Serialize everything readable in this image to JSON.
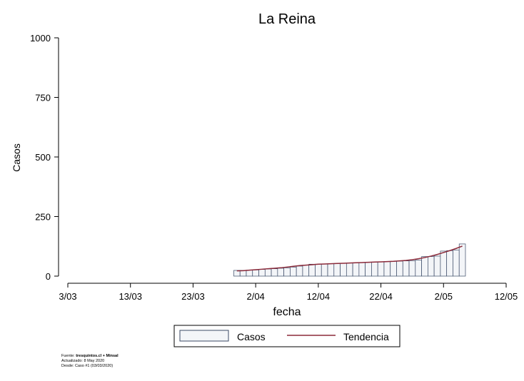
{
  "chart_data": {
    "type": "bar",
    "title": "La Reina",
    "xlabel": "fecha",
    "ylabel": "Casos",
    "ylim": [
      0,
      1000
    ],
    "yticks": [
      0,
      250,
      500,
      750,
      1000
    ],
    "xlim": [
      0,
      70
    ],
    "xticks": [
      {
        "day": 0,
        "label": "3/03"
      },
      {
        "day": 10,
        "label": "13/03"
      },
      {
        "day": 20,
        "label": "23/03"
      },
      {
        "day": 30,
        "label": "2/04"
      },
      {
        "day": 40,
        "label": "12/04"
      },
      {
        "day": 50,
        "label": "22/04"
      },
      {
        "day": 60,
        "label": "2/05"
      },
      {
        "day": 70,
        "label": "12/05"
      }
    ],
    "x_days": [
      27,
      28,
      29,
      30,
      31,
      32,
      33,
      34,
      35,
      36,
      37,
      38,
      39,
      40,
      41,
      42,
      43,
      44,
      45,
      46,
      47,
      48,
      49,
      50,
      51,
      52,
      53,
      54,
      55,
      56,
      57,
      58,
      59,
      60,
      61,
      62,
      63
    ],
    "series": [
      {
        "name": "Casos",
        "kind": "bar",
        "values": [
          24,
          24,
          25,
          26,
          28,
          30,
          31,
          33,
          35,
          38,
          42,
          46,
          50,
          50,
          51,
          52,
          53,
          54,
          55,
          56,
          57,
          58,
          59,
          60,
          61,
          62,
          63,
          64,
          65,
          67,
          82,
          82,
          84,
          105,
          107,
          110,
          135
        ]
      },
      {
        "name": "Tendencia",
        "kind": "line",
        "values": [
          22,
          23,
          25,
          27,
          29,
          31,
          33,
          35,
          38,
          41,
          44,
          46,
          48,
          50,
          51,
          52,
          53,
          54,
          55,
          56,
          57,
          58,
          59,
          60,
          61,
          62,
          64,
          66,
          69,
          73,
          78,
          84,
          91,
          99,
          107,
          116,
          126
        ]
      }
    ],
    "legend": [
      "Casos",
      "Tendencia"
    ],
    "legend_position": "bottom",
    "colors": {
      "bar_fill": "#f3f5f8",
      "bar_stroke": "#3b4a66",
      "line": "#8b2a3a",
      "axis": "#000000"
    }
  },
  "footnote": {
    "source_label": "Fuente: ",
    "source_value": "tresquintos.cl + Minsal",
    "updated": "Actualizado: 8 May 2020",
    "since": "Desde: Caso #1  (03/03/2020)"
  }
}
